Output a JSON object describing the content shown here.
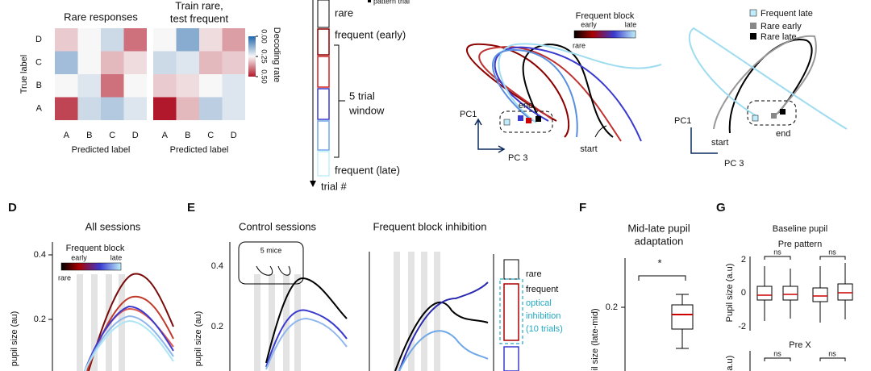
{
  "panel_a": {
    "heatmaps": [
      {
        "title": [
          "Rare responses"
        ],
        "values": [
          [
            0.3,
            0.25,
            0.2,
            0.4
          ],
          [
            0.15,
            0.25,
            0.32,
            0.28
          ],
          [
            0.25,
            0.22,
            0.4,
            0.25
          ],
          [
            0.45,
            0.2,
            0.17,
            0.22
          ]
        ]
      },
      {
        "title": [
          "Train rare,",
          "test frequent"
        ],
        "values": [
          [
            0.25,
            0.12,
            0.28,
            0.35
          ],
          [
            0.2,
            0.22,
            0.32,
            0.3
          ],
          [
            0.3,
            0.28,
            0.25,
            0.22
          ],
          [
            0.5,
            0.32,
            0.18,
            0.22
          ]
        ]
      }
    ],
    "y_label": "True label",
    "x_label": "Predicted label",
    "row_labels": [
      "D",
      "C",
      "B",
      "A"
    ],
    "col_labels": [
      "A",
      "B",
      "C",
      "D"
    ],
    "colorbar": {
      "label": "Decoding rate",
      "range": [
        0,
        0.5
      ],
      "ticks": [
        {
          "value": 0,
          "label": "0.00"
        },
        {
          "value": 0.25,
          "label": "0.25"
        },
        {
          "value": 0.5,
          "label": "0.50"
        }
      ]
    }
  },
  "panel_b": {
    "pattern_trial": "pattern trial",
    "labels": [
      "rare",
      "frequent (early)",
      "5 trial",
      "window",
      "frequent (late)"
    ],
    "axis": "trial #"
  },
  "panel_c": {
    "legend_title": "Frequent block",
    "early": "early",
    "late": "late",
    "rare": "rare",
    "end": "end",
    "start": "start",
    "pc1": "PC1",
    "pc3": "PC 3",
    "legend2": [
      "Frequent late",
      "Rare early",
      "Rare late"
    ]
  },
  "panel_d": {
    "letter": "D",
    "title": "All sessions",
    "yticks": [
      "0.4",
      "0.2"
    ],
    "y_label": "pupil size (au)",
    "legend_title": "Frequent block",
    "early": "early",
    "late": "late",
    "rare": "rare"
  },
  "panel_e": {
    "letter": "E",
    "titles": [
      "Control sessions",
      "Frequent block inhibition"
    ],
    "inset": "5 mice",
    "yticks": [
      "0.4",
      "0.2"
    ],
    "y_label": "pupil size (au)",
    "legend": [
      "rare",
      "frequent",
      "optical",
      "inhibition",
      "(10 trials)"
    ]
  },
  "panel_f": {
    "letter": "F",
    "title": [
      "Mid-late pupil",
      "adaptation"
    ],
    "sig": "*",
    "ytick": "0.2",
    "y_label": "pupil size (late-mid)"
  },
  "panel_g": {
    "letter": "G",
    "title": "Baseline pupil",
    "sub1": "Pre pattern",
    "sub2": "Pre X",
    "ns": "ns",
    "yticks": [
      "2",
      "0",
      "-2"
    ],
    "y_label": "Pupil size (a.u)",
    "y_label2": "(a.u)"
  }
}
